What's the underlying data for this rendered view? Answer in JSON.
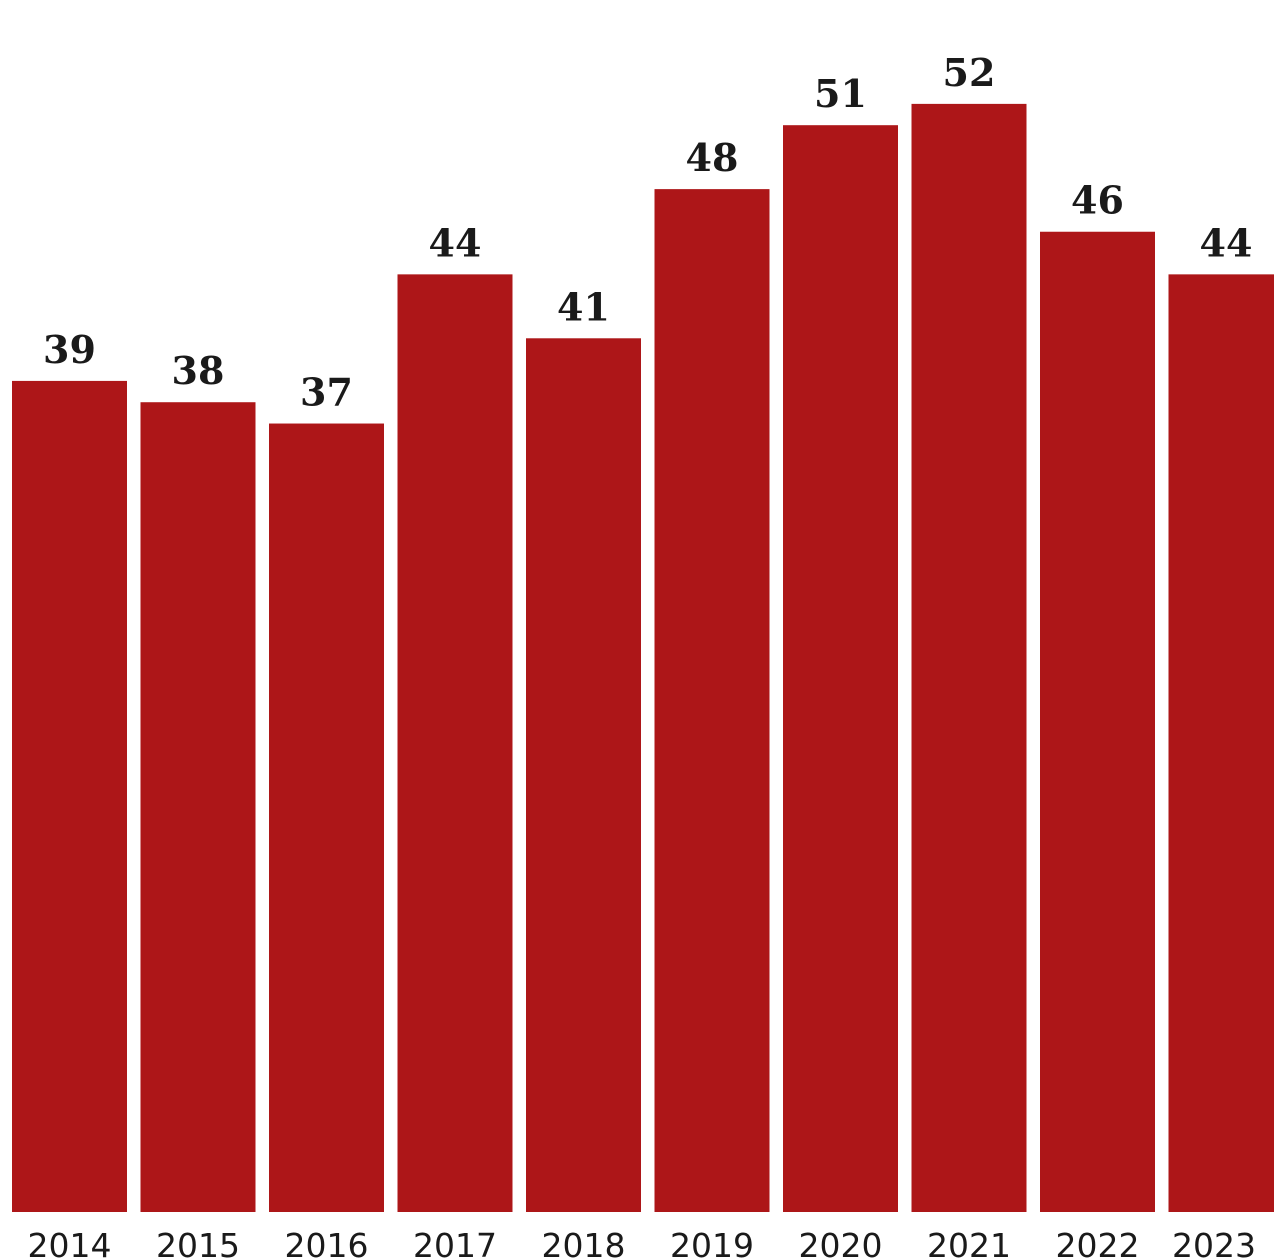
{
  "chart_data": {
    "type": "bar",
    "categories": [
      "2014",
      "2015",
      "2016",
      "2017",
      "2018",
      "2019",
      "2020",
      "2021",
      "2022",
      "2023"
    ],
    "values": [
      39,
      38,
      37,
      44,
      41,
      48,
      51,
      52,
      46,
      44
    ],
    "data_labels": [
      "39",
      "38",
      "37",
      "44",
      "41",
      "48",
      "51",
      "52",
      "46",
      "44"
    ],
    "bar_color": "#ad1618",
    "ylim": [
      0,
      52
    ],
    "grid": false,
    "legend": "none"
  }
}
